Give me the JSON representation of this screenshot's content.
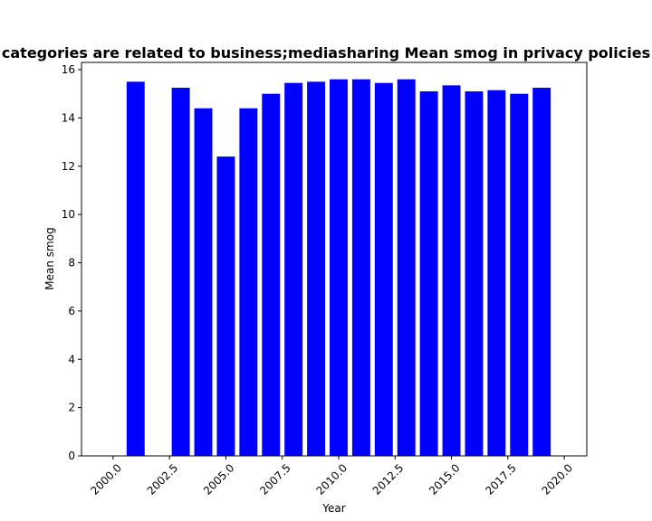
{
  "chart_data": {
    "type": "bar",
    "title": "categories are related to business;mediasharing Mean smog in privacy policies",
    "xlabel": "Year",
    "ylabel": "Mean smog",
    "xlim": [
      1998.6,
      2021.0
    ],
    "ylim": [
      0,
      16.3
    ],
    "xticks": [
      "2000.0",
      "2002.5",
      "2005.0",
      "2007.5",
      "2010.0",
      "2012.5",
      "2015.0",
      "2017.5",
      "2020.0"
    ],
    "yticks": [
      "0",
      "2",
      "4",
      "6",
      "8",
      "10",
      "12",
      "14",
      "16"
    ],
    "bar_color": "#0000ff",
    "grid": false,
    "x": [
      2001,
      2003,
      2004,
      2005,
      2006,
      2007,
      2008,
      2009,
      2010,
      2011,
      2012,
      2013,
      2014,
      2015,
      2016,
      2017,
      2018,
      2019
    ],
    "values": [
      15.5,
      15.25,
      14.4,
      12.4,
      14.4,
      15.0,
      15.45,
      15.5,
      15.6,
      15.6,
      15.45,
      15.6,
      15.1,
      15.35,
      15.1,
      15.15,
      15.0,
      15.25
    ]
  }
}
